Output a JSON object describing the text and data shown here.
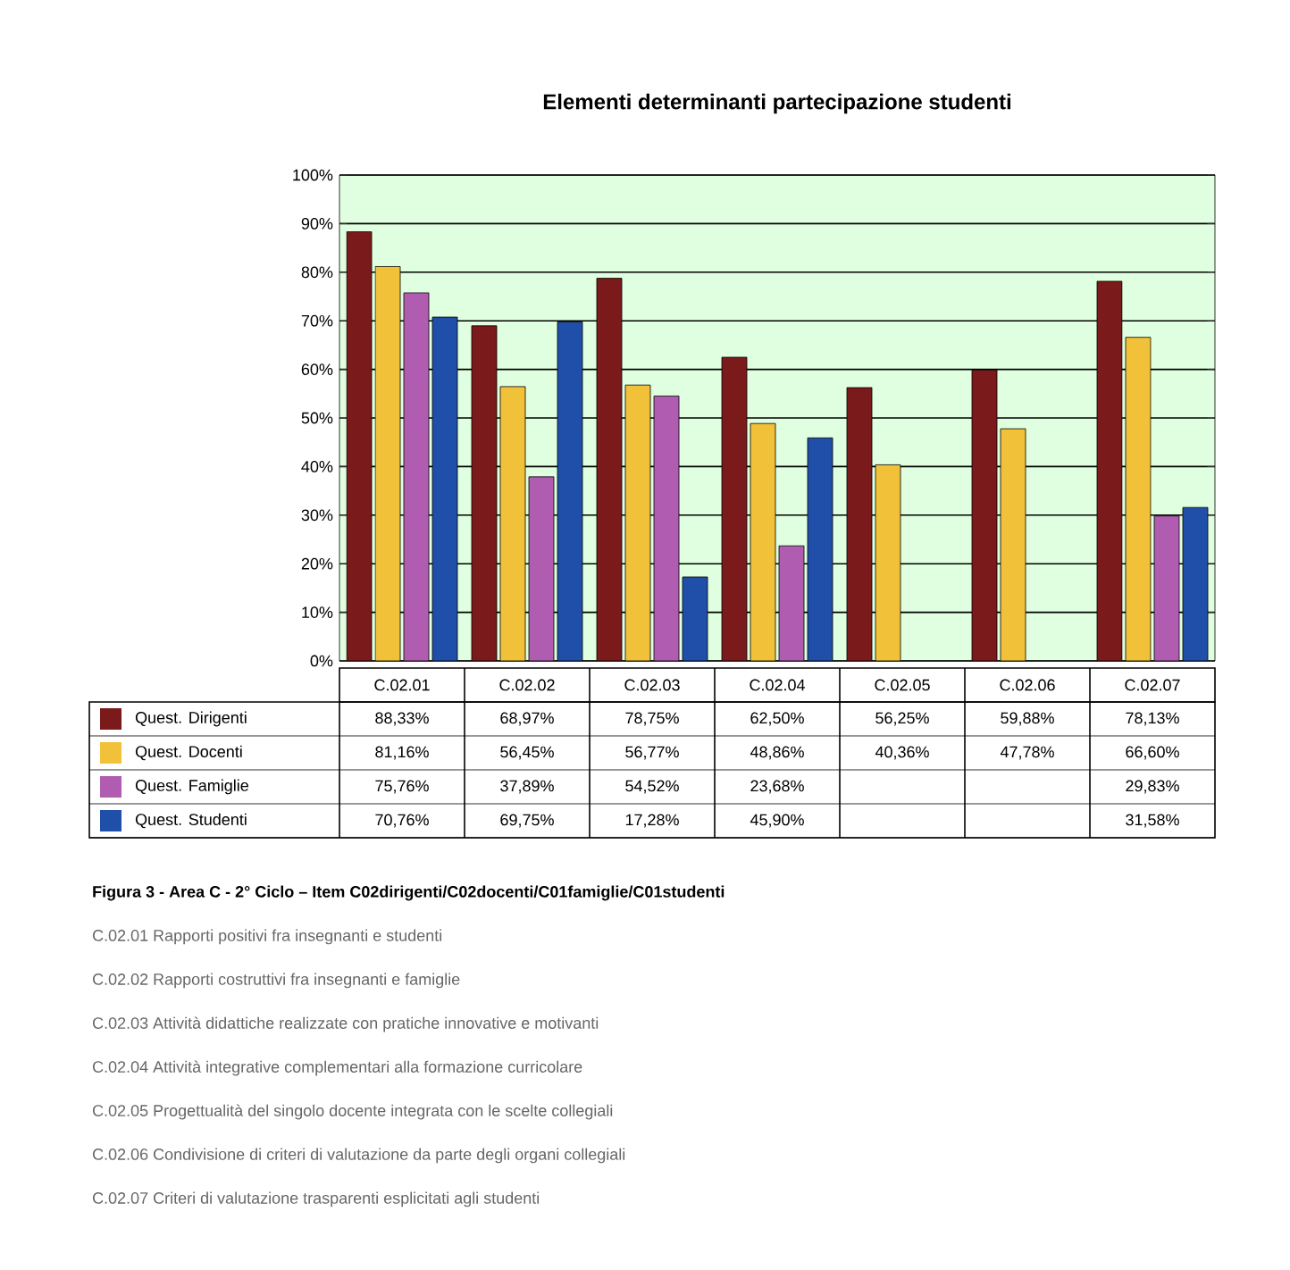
{
  "chart_data": {
    "type": "bar",
    "title": "Elementi determinanti partecipazione studenti",
    "categories": [
      "C.02.01",
      "C.02.02",
      "C.02.03",
      "C.02.04",
      "C.02.05",
      "C.02.06",
      "C.02.07"
    ],
    "series": [
      {
        "name": "Quest. Dirigenti",
        "color": "#7b1a1a",
        "values": [
          88.33,
          68.97,
          78.75,
          62.5,
          56.25,
          59.88,
          78.13
        ],
        "value_labels": [
          "88,33%",
          "68,97%",
          "78,75%",
          "62,50%",
          "56,25%",
          "59,88%",
          "78,13%"
        ]
      },
      {
        "name": "Quest. Docenti",
        "color": "#f2c13a",
        "values": [
          81.16,
          56.45,
          56.77,
          48.86,
          40.36,
          47.78,
          66.6
        ],
        "value_labels": [
          "81,16%",
          "56,45%",
          "56,77%",
          "48,86%",
          "40,36%",
          "47,78%",
          "66,60%"
        ]
      },
      {
        "name": "Quest. Famiglie",
        "color": "#b05cb0",
        "values": [
          75.76,
          37.89,
          54.52,
          23.68,
          null,
          null,
          29.83
        ],
        "value_labels": [
          "75,76%",
          "37,89%",
          "54,52%",
          "23,68%",
          null,
          null,
          "29,83%"
        ]
      },
      {
        "name": "Quest. Studenti",
        "color": "#1f4fa8",
        "values": [
          70.76,
          69.75,
          17.28,
          45.9,
          null,
          null,
          31.58
        ],
        "value_labels": [
          "70,76%",
          "69,75%",
          "17,28%",
          "45,90%",
          null,
          null,
          "31,58%"
        ]
      }
    ],
    "ylim": [
      0,
      100
    ],
    "yticks": [
      {
        "value": 0,
        "label": "0%"
      },
      {
        "value": 10,
        "label": "10%"
      },
      {
        "value": 20,
        "label": "20%"
      },
      {
        "value": 30,
        "label": "30%"
      },
      {
        "value": 40,
        "label": "40%"
      },
      {
        "value": 50,
        "label": "50%"
      },
      {
        "value": 60,
        "label": "60%"
      },
      {
        "value": 70,
        "label": "70%"
      },
      {
        "value": 80,
        "label": "80%"
      },
      {
        "value": 90,
        "label": "90%"
      },
      {
        "value": 100,
        "label": "100%"
      }
    ],
    "grid": "y",
    "legend": "bottom",
    "annotations": [
      "Figura 3 - Area C - 2° Ciclo – Item C02dirigenti/C02docenti/C01famiglie/C01studenti",
      "C.02.01 Rapporti positivi fra insegnanti e studenti",
      "C.02.02 Rapporti costruttivi fra insegnanti e famiglie",
      "C.02.03 Attività didattiche realizzate con pratiche innovative e motivanti",
      "C.02.04 Attività integrative complementari alla formazione curricolare",
      "C.02.05 Progettualità del singolo docente integrata con le scelte collegiali",
      "C.02.06 Condivisione di criteri di valutazione da parte degli organi collegiali",
      "C.02.07 Criteri di valutazione trasparenti esplicitati agli studenti"
    ]
  }
}
